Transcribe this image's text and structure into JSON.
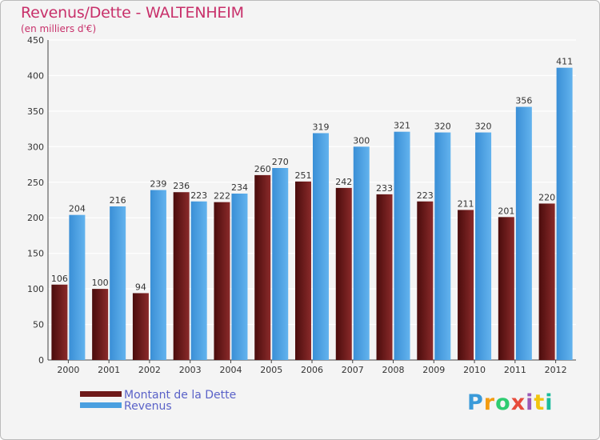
{
  "header": {
    "title": "Revenus/Dette - WALTENHEIM",
    "subtitle": "(en milliers d'€)"
  },
  "logo": {
    "text": "Proxiti",
    "colors": [
      "#3a9ad9",
      "#f39c12",
      "#2ecc71",
      "#e74c3c",
      "#9b59b6",
      "#f1c40f",
      "#1abc9c"
    ]
  },
  "colors": {
    "dette": "#6e1a1a",
    "revenus": "#4a9fe0",
    "grid": "#ffffff",
    "plot_bg": "#f4f4f4",
    "title": "#c8306a"
  },
  "chart_data": {
    "type": "bar",
    "title": "Revenus/Dette - WALTENHEIM",
    "subtitle": "(en milliers d'€)",
    "categories": [
      "2000",
      "2001",
      "2002",
      "2003",
      "2004",
      "2005",
      "2006",
      "2007",
      "2008",
      "2009",
      "2010",
      "2011",
      "2012"
    ],
    "series": [
      {
        "name": "Montant de la Dette",
        "values": [
          106,
          100,
          94,
          236,
          222,
          260,
          251,
          242,
          233,
          223,
          211,
          201,
          220
        ]
      },
      {
        "name": "Revenus",
        "values": [
          204,
          216,
          239,
          223,
          234,
          270,
          319,
          300,
          321,
          320,
          320,
          356,
          411
        ]
      }
    ],
    "ylim": [
      0,
      450
    ],
    "yticks": [
      0,
      50,
      100,
      150,
      200,
      250,
      300,
      350,
      400,
      450
    ],
    "grid": true,
    "legend": "bottom-left"
  }
}
